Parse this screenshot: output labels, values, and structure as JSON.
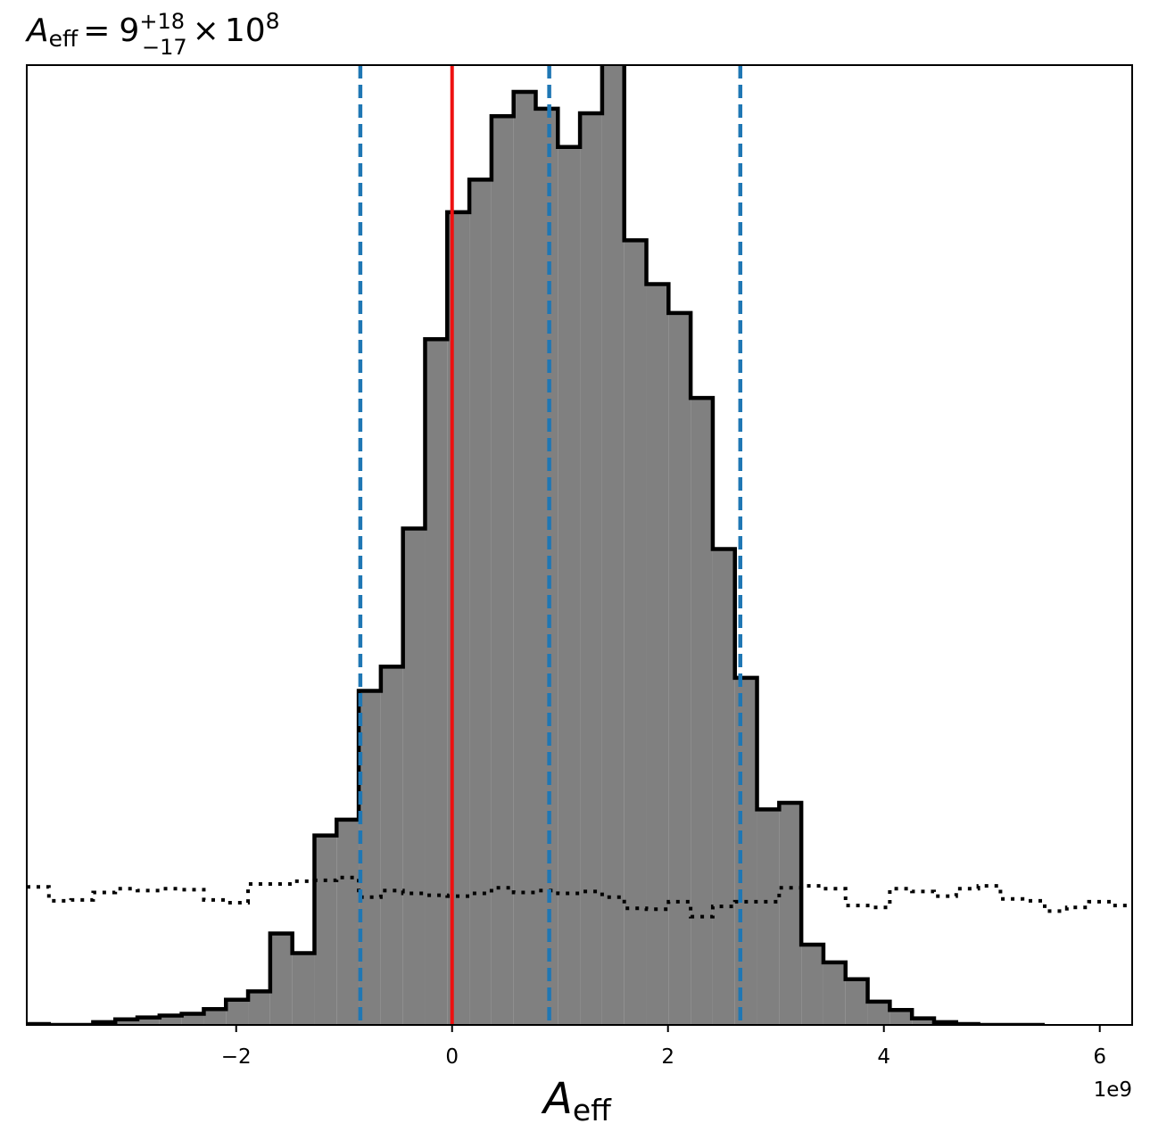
{
  "chart_data": {
    "type": "histogram",
    "title": {
      "symbol": "A",
      "subscript": "eff",
      "equals": "=",
      "value": "9",
      "upper": "+18",
      "lower": "−17",
      "times": "×",
      "base": "10",
      "exponent": "8"
    },
    "xlabel": {
      "symbol": "A",
      "subscript": "eff"
    },
    "x_offset_label": "1e9",
    "xlim": [
      -3.94,
      6.3
    ],
    "ylim": [
      0,
      1
    ],
    "x_scale": 1000000000,
    "x_ticks": [
      {
        "value": -2,
        "label": "−2"
      },
      {
        "value": 0,
        "label": "0"
      },
      {
        "value": 2,
        "label": "2"
      },
      {
        "value": 4,
        "label": "4"
      },
      {
        "value": 6,
        "label": "6"
      }
    ],
    "grid": false,
    "posterior_histogram": {
      "bin_start": -3.94,
      "bin_width": 0.205,
      "fill": "#808080",
      "edge": "#000000",
      "density": [
        0.001,
        0.0,
        0.0,
        0.003,
        0.006,
        0.008,
        0.01,
        0.012,
        0.017,
        0.027,
        0.036,
        0.098,
        0.077,
        0.203,
        0.22,
        0.358,
        0.384,
        0.532,
        0.735,
        0.871,
        0.906,
        0.974,
        1.0,
        0.982,
        0.941,
        0.977,
        1.04,
        0.841,
        0.794,
        0.763,
        0.672,
        0.51,
        0.372,
        0.231,
        0.238,
        0.086,
        0.067,
        0.049,
        0.025,
        0.016,
        0.007,
        0.003,
        0.001,
        0.0,
        0.0,
        0.0
      ]
    },
    "prior_histogram": {
      "bin_start": -3.94,
      "bin_width": 0.205,
      "style": "dotted",
      "color": "#000000",
      "density": [
        0.148,
        0.133,
        0.134,
        0.142,
        0.146,
        0.144,
        0.146,
        0.145,
        0.134,
        0.131,
        0.151,
        0.151,
        0.154,
        0.155,
        0.158,
        0.137,
        0.144,
        0.141,
        0.139,
        0.138,
        0.141,
        0.147,
        0.142,
        0.144,
        0.141,
        0.143,
        0.137,
        0.125,
        0.124,
        0.132,
        0.116,
        0.127,
        0.132,
        0.132,
        0.147,
        0.149,
        0.146,
        0.128,
        0.126,
        0.146,
        0.143,
        0.138,
        0.146,
        0.149,
        0.135,
        0.133,
        0.122,
        0.126,
        0.132,
        0.128,
        0.136,
        0.136
      ]
    },
    "reference_lines": [
      {
        "value": 0.0,
        "color": "#ee1111",
        "style": "solid"
      },
      {
        "value": -0.85,
        "color": "#1f77b4",
        "style": "dashed"
      },
      {
        "value": 0.9,
        "color": "#1f77b4",
        "style": "dashed"
      },
      {
        "value": 2.67,
        "color": "#1f77b4",
        "style": "dashed"
      }
    ]
  }
}
